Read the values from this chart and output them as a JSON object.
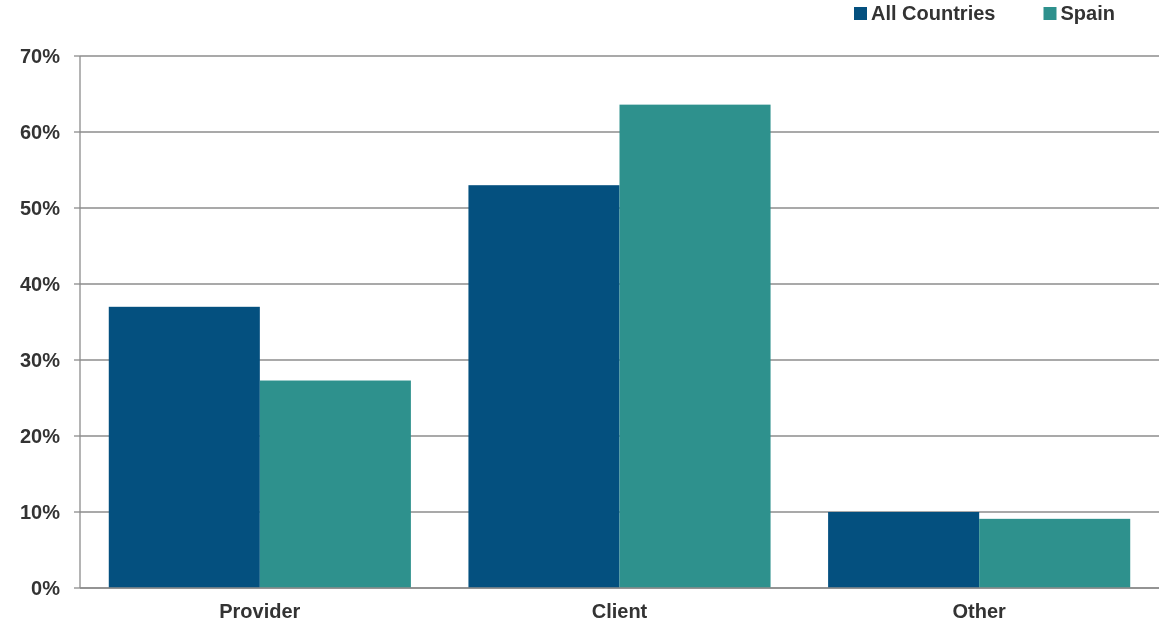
{
  "chart_data": {
    "type": "bar",
    "categories": [
      "Provider",
      "Client",
      "Other"
    ],
    "series": [
      {
        "name": "All Countries",
        "color": "#04507f",
        "values": [
          37,
          53,
          10
        ]
      },
      {
        "name": "Spain",
        "color": "#2e918d",
        "values": [
          27.3,
          63.6,
          9.1
        ]
      }
    ],
    "ylim": [
      0,
      70
    ],
    "yticks": [
      {
        "value": 0,
        "label": "0%"
      },
      {
        "value": 10,
        "label": "10%"
      },
      {
        "value": 20,
        "label": "20%"
      },
      {
        "value": 30,
        "label": "30%"
      },
      {
        "value": 40,
        "label": "40%"
      },
      {
        "value": 50,
        "label": "50%"
      },
      {
        "value": 60,
        "label": "60%"
      },
      {
        "value": 70,
        "label": "70%"
      }
    ],
    "grid": "y",
    "legend": "top right"
  }
}
